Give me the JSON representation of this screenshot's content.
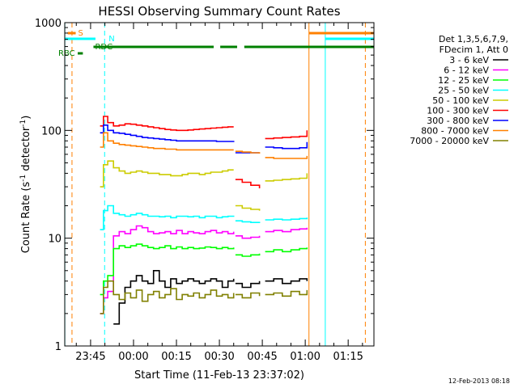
{
  "chart_data": {
    "type": "line",
    "title": "HESSI Observing Summary Count Rates",
    "xlabel": "Start Time (11-Feb-13 23:37:02)",
    "ylabel_parts": [
      "Count Rate (s",
      "-1",
      " detector",
      "-1",
      ")"
    ],
    "ylabel": "Count Rate (s^-1 detector^-1)",
    "y_scale": "log",
    "ylim": [
      1,
      1000
    ],
    "xlim": [
      -9.03,
      99.0
    ],
    "x_units": "minutes after 23:45 on 11-Feb-13",
    "y_ticks": [
      {
        "value": 1,
        "label": "1"
      },
      {
        "value": 10,
        "label": "10"
      },
      {
        "value": 100,
        "label": "100"
      },
      {
        "value": 1000,
        "label": "1000"
      }
    ],
    "x_ticks": [
      {
        "value": 0,
        "label": "23:45"
      },
      {
        "value": 15,
        "label": "00:00"
      },
      {
        "value": 30,
        "label": "00:15"
      },
      {
        "value": 45,
        "label": "00:30"
      },
      {
        "value": 60,
        "label": "00:45"
      },
      {
        "value": 75,
        "label": "01:00"
      },
      {
        "value": 90,
        "label": "01:15"
      }
    ],
    "legend": {
      "header": [
        "Det 1,3,5,6,7,9,",
        "FDecim 1, Att 0"
      ],
      "placement": "right-outside"
    },
    "series": [
      {
        "name": "3 - 6 keV",
        "color": "#000000",
        "segments": [
          {
            "x": [
              8.0,
              10,
              12,
              14,
              16,
              18,
              20,
              22,
              24,
              26,
              28,
              30,
              32,
              34,
              36,
              38,
              40,
              42,
              44,
              46,
              48,
              50
            ],
            "y": [
              1.6,
              2.5,
              3.5,
              4.0,
              4.5,
              4.0,
              3.8,
              5.0,
              4.0,
              3.5,
              4.2,
              3.8,
              4.0,
              4.2,
              4.0,
              3.8,
              4.0,
              4.2,
              4.0,
              3.5,
              4.0,
              4.2
            ]
          },
          {
            "x": [
              50.6,
              53,
              56,
              59
            ],
            "y": [
              3.8,
              3.5,
              3.8,
              4.0
            ]
          },
          {
            "x": [
              61.0,
              64,
              67,
              70,
              73,
              75.6
            ],
            "y": [
              4.0,
              4.2,
              3.8,
              4.0,
              4.2,
              4.0
            ]
          }
        ]
      },
      {
        "name": "6 - 12 keV",
        "color": "#ff00ff",
        "segments": [
          {
            "x": [
              3.3,
              4.5,
              6,
              8,
              10,
              12,
              14,
              16,
              18,
              20,
              22,
              24,
              26,
              28,
              30,
              32,
              34,
              36,
              38,
              40,
              42,
              44,
              46,
              48,
              50
            ],
            "y": [
              2.0,
              2.8,
              3.2,
              10.5,
              11.5,
              11.0,
              12.0,
              13.0,
              12.5,
              11.5,
              11.0,
              11.2,
              11.5,
              11.0,
              11.8,
              11.0,
              11.5,
              11.2,
              11.0,
              11.5,
              11.8,
              11.2,
              11.5,
              11.0,
              11.5
            ]
          },
          {
            "x": [
              50.6,
              53,
              56,
              59
            ],
            "y": [
              10.5,
              10.0,
              10.2,
              10.5
            ]
          },
          {
            "x": [
              61.0,
              64,
              67,
              70,
              73,
              75.6
            ],
            "y": [
              11.5,
              11.8,
              11.5,
              12.0,
              12.2,
              12.5
            ]
          }
        ]
      },
      {
        "name": "12 - 25 keV",
        "color": "#00ff00",
        "segments": [
          {
            "x": [
              3.3,
              4.5,
              6,
              8,
              10,
              12,
              14,
              16,
              18,
              20,
              22,
              24,
              26,
              28,
              30,
              32,
              34,
              36,
              38,
              40,
              42,
              44,
              46,
              48,
              50
            ],
            "y": [
              3.0,
              4.0,
              4.5,
              8.0,
              8.5,
              8.2,
              8.5,
              8.8,
              8.5,
              8.2,
              8.0,
              8.2,
              8.5,
              8.0,
              8.3,
              8.0,
              8.2,
              8.0,
              8.1,
              8.3,
              8.2,
              8.0,
              8.2,
              8.0,
              8.2
            ]
          },
          {
            "x": [
              50.6,
              53,
              56,
              59
            ],
            "y": [
              7.0,
              6.8,
              7.0,
              7.2
            ]
          },
          {
            "x": [
              61.0,
              64,
              67,
              70,
              73,
              75.6
            ],
            "y": [
              7.5,
              7.8,
              7.5,
              7.8,
              8.0,
              8.2
            ]
          }
        ]
      },
      {
        "name": "25 - 50 keV",
        "color": "#00ffff",
        "segments": [
          {
            "x": [
              3.3,
              4.5,
              6,
              8,
              10,
              12,
              14,
              16,
              18,
              20,
              22,
              24,
              26,
              28,
              30,
              32,
              34,
              36,
              38,
              40,
              42,
              44,
              46,
              48,
              50
            ],
            "y": [
              12,
              18,
              20,
              17,
              16.5,
              16.0,
              16.5,
              17.0,
              16.5,
              16.0,
              16.0,
              15.8,
              16.0,
              15.5,
              16.0,
              16.0,
              15.8,
              16.0,
              15.5,
              16.0,
              16.0,
              15.5,
              15.8,
              16.0,
              15.8
            ]
          },
          {
            "x": [
              50.6,
              53,
              56,
              59
            ],
            "y": [
              14.5,
              14.2,
              14.0,
              14.2
            ]
          },
          {
            "x": [
              61.0,
              64,
              67,
              70,
              73,
              75.6
            ],
            "y": [
              14.8,
              15.0,
              14.8,
              15.0,
              15.2,
              15.5
            ]
          }
        ]
      },
      {
        "name": "50 - 100 keV",
        "color": "#cccc00",
        "segments": [
          {
            "x": [
              3.3,
              4.5,
              6,
              8,
              10,
              12,
              14,
              16,
              18,
              20,
              22,
              24,
              26,
              28,
              30,
              32,
              34,
              36,
              38,
              40,
              42,
              44,
              46,
              48,
              50
            ],
            "y": [
              30,
              48,
              52,
              45,
              42,
              40,
              41,
              42,
              41,
              40,
              40,
              39,
              39,
              38,
              38,
              39,
              40,
              40,
              39,
              40,
              41,
              41,
              42,
              43,
              43
            ]
          },
          {
            "x": [
              50.6,
              53,
              56,
              59
            ],
            "y": [
              20,
              19,
              18.5,
              18
            ]
          },
          {
            "x": [
              61.0,
              64,
              67,
              70,
              73,
              75.6
            ],
            "y": [
              34,
              34.5,
              35,
              35.5,
              36,
              40
            ]
          }
        ]
      },
      {
        "name": "100 - 300 keV",
        "color": "#ff0000",
        "segments": [
          {
            "x": [
              3.3,
              4.5,
              6,
              8,
              10,
              12,
              14,
              16,
              18,
              20,
              22,
              24,
              26,
              28,
              30,
              32,
              34,
              36,
              38,
              40,
              42,
              44,
              46,
              48,
              50
            ],
            "y": [
              110,
              135,
              118,
              110,
              112,
              115,
              114,
              112,
              110,
              108,
              106,
              104,
              102,
              101,
              100,
              100,
              101,
              102,
              103,
              104,
              105,
              106,
              107,
              108,
              108
            ]
          },
          {
            "x": [
              50.6,
              53,
              56,
              59
            ],
            "y": [
              35,
              33,
              31,
              29
            ]
          },
          {
            "x": [
              61.0,
              64,
              67,
              70,
              73,
              75.6
            ],
            "y": [
              84,
              85,
              86,
              87,
              88,
              100
            ]
          }
        ]
      },
      {
        "name": "300 - 800 keV",
        "color": "#0000ff",
        "segments": [
          {
            "x": [
              3.3,
              4.5,
              6,
              8,
              10,
              12,
              14,
              16,
              18,
              20,
              22,
              24,
              26,
              28,
              30,
              32,
              34,
              36,
              38,
              40,
              42,
              44,
              46,
              48,
              50
            ],
            "y": [
              95,
              112,
              100,
              95,
              94,
              92,
              90,
              88,
              86,
              85,
              84,
              83,
              82,
              81,
              80,
              80,
              80,
              80,
              80,
              80,
              80,
              79,
              79,
              79,
              78
            ]
          },
          {
            "x": [
              50.6,
              53,
              56,
              59
            ],
            "y": [
              62,
              62,
              62,
              62
            ]
          },
          {
            "x": [
              61.0,
              64,
              67,
              70,
              73,
              75.6
            ],
            "y": [
              70,
              69,
              68,
              68,
              69,
              78
            ]
          }
        ]
      },
      {
        "name": "800 - 7000 keV",
        "color": "#ff8000",
        "segments": [
          {
            "x": [
              3.3,
              4.5,
              6,
              8,
              10,
              12,
              14,
              16,
              18,
              20,
              22,
              24,
              26,
              28,
              30,
              32,
              34,
              36,
              38,
              40,
              42,
              44,
              46,
              48,
              50
            ],
            "y": [
              70,
              95,
              80,
              76,
              74,
              73,
              72,
              71,
              70,
              69,
              68,
              68,
              67,
              67,
              66,
              66,
              66,
              66,
              66,
              66,
              66,
              66,
              66,
              66,
              66
            ]
          },
          {
            "x": [
              50.6,
              53,
              56,
              59
            ],
            "y": [
              64,
              63,
              62,
              61
            ]
          },
          {
            "x": [
              61.0,
              64,
              67,
              70,
              73,
              75.6
            ],
            "y": [
              56,
              55,
              55,
              55,
              55,
              58
            ]
          }
        ]
      },
      {
        "name": "7000 - 20000 keV",
        "color": "#808000",
        "segments": [
          {
            "x": [
              3.3,
              4.5,
              6,
              8,
              10,
              12,
              14,
              16,
              18,
              20,
              22,
              24,
              26,
              28,
              30,
              32,
              34,
              36,
              38,
              40,
              42,
              44,
              46,
              48,
              50
            ],
            "y": [
              2.0,
              3.5,
              4.0,
              3.0,
              2.7,
              3.1,
              2.8,
              3.3,
              2.6,
              3.0,
              3.2,
              2.8,
              3.0,
              3.4,
              2.7,
              3.0,
              2.9,
              3.1,
              2.8,
              3.0,
              3.3,
              2.9,
              3.0,
              2.8,
              3.1
            ]
          },
          {
            "x": [
              50.6,
              53,
              56,
              59
            ],
            "y": [
              3.0,
              2.8,
              3.1,
              2.9
            ]
          },
          {
            "x": [
              61.0,
              64,
              67,
              70,
              73,
              75.6
            ],
            "y": [
              3.0,
              3.1,
              2.9,
              3.2,
              3.0,
              3.3
            ]
          }
        ]
      }
    ],
    "flag_bars": [
      {
        "label": "S",
        "color": "#ff8000",
        "segments": [
          [
            -8.0,
            -5.2
          ],
          [
            76.3,
            99.0
          ]
        ]
      },
      {
        "label": "N",
        "color": "#00ffff",
        "segments": [
          [
            -9.03,
            1.7
          ],
          [
            82.0,
            99.0
          ]
        ]
      },
      {
        "label": "RDC",
        "color": "#008000",
        "segments": [
          [
            1.0,
            43.0
          ],
          [
            45.3,
            51.2
          ],
          [
            53.7,
            99.0
          ]
        ]
      },
      {
        "label": "RBC",
        "color": "#008000",
        "segments": [
          [
            -4.5,
            -2.7
          ]
        ]
      }
    ],
    "vertical_markers": [
      {
        "x": -9.0,
        "color": "#00ffff",
        "style": "solid"
      },
      {
        "x": -6.5,
        "color": "#ff8000",
        "style": "dashed"
      },
      {
        "x": 4.9,
        "color": "#00ffff",
        "style": "dashed"
      },
      {
        "x": 76.3,
        "color": "#ff8000",
        "style": "solid"
      },
      {
        "x": 82.0,
        "color": "#00ffff",
        "style": "solid"
      },
      {
        "x": 96.0,
        "color": "#ff8000",
        "style": "dashed"
      }
    ]
  },
  "footer": {
    "timestamp": "12-Feb-2013 08:18"
  }
}
